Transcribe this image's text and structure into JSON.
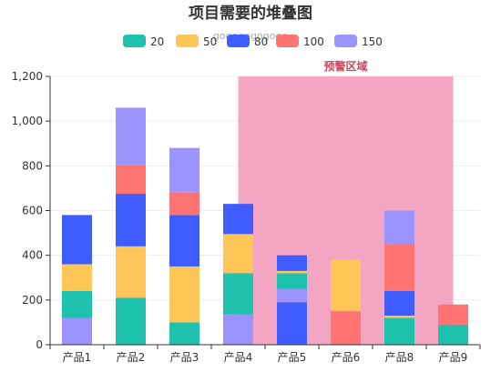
{
  "chart_data": {
    "type": "bar",
    "stacked": true,
    "title": "项目需要的堆叠图",
    "subtitle": "gogogogogogo",
    "categories": [
      "产品1",
      "产品2",
      "产品3",
      "产品4",
      "产品5",
      "产品6",
      "产品8",
      "产品9"
    ],
    "series": [
      {
        "name": "150",
        "color": "#9b94ff",
        "values": [
          120,
          0,
          0,
          135,
          60,
          0,
          0,
          0
        ]
      },
      {
        "name": "20",
        "color": "#1ec2ad",
        "values": [
          120,
          210,
          100,
          185,
          70,
          0,
          120,
          90
        ]
      },
      {
        "name": "50",
        "color": "#ffc556",
        "values": [
          120,
          230,
          250,
          175,
          10,
          230,
          10,
          0
        ]
      },
      {
        "name": "80",
        "color": "#3f5cff",
        "values": [
          220,
          235,
          230,
          135,
          70,
          0,
          110,
          0
        ]
      },
      {
        "name": "100",
        "color": "#ff7373",
        "values": [
          0,
          130,
          100,
          0,
          0,
          0,
          210,
          90
        ]
      },
      {
        "name": "150",
        "color": "#9b94ff",
        "values": [
          0,
          255,
          200,
          0,
          0,
          0,
          150,
          0
        ]
      }
    ],
    "lower_series": [
      {
        "category": "产品5",
        "name": "80",
        "value": 190
      },
      {
        "category": "产品6",
        "name": "100",
        "value": 150
      }
    ],
    "legend": [
      {
        "name": "20",
        "color": "#1ec2ad"
      },
      {
        "name": "50",
        "color": "#ffc556"
      },
      {
        "name": "80",
        "color": "#3f5cff"
      },
      {
        "name": "100",
        "color": "#ff7373"
      },
      {
        "name": "150",
        "color": "#9b94ff"
      }
    ],
    "legend_position": "top-center",
    "ylim": [
      0,
      1200
    ],
    "yticks": [
      0,
      200,
      400,
      600,
      800,
      1000,
      1200
    ],
    "ytick_labels": [
      "0",
      "200",
      "400",
      "600",
      "800",
      "1,000",
      "1,200"
    ],
    "grid": true,
    "mark_area": {
      "label": "预警区域",
      "from_category": "产品4",
      "to_category": "产品9",
      "color": "#f3a0bf"
    }
  }
}
